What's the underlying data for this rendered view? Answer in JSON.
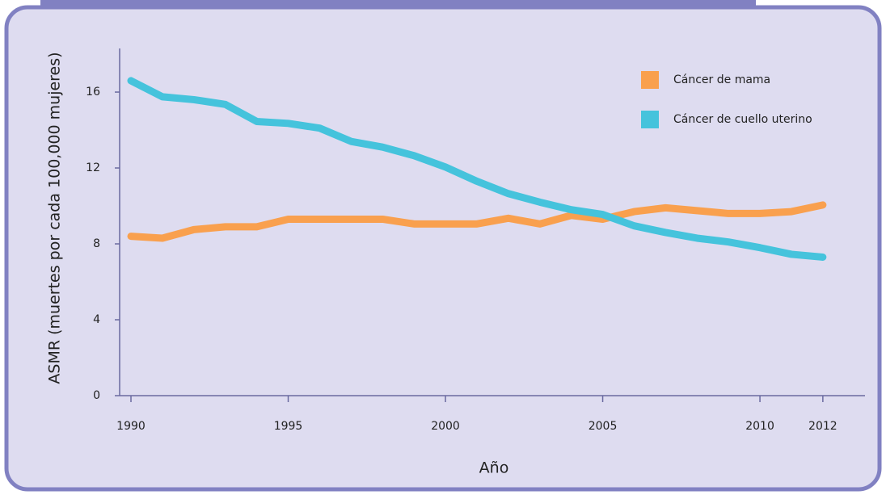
{
  "chart_data": {
    "type": "line",
    "x": [
      1990,
      1991,
      1992,
      1993,
      1994,
      1995,
      1996,
      1997,
      1998,
      1999,
      2000,
      2001,
      2002,
      2003,
      2004,
      2005,
      2006,
      2007,
      2008,
      2009,
      2010,
      2011,
      2012
    ],
    "series": [
      {
        "name": "Cáncer de mama",
        "color": "#f9a04e",
        "values": [
          8.4,
          8.3,
          8.75,
          8.9,
          8.9,
          9.3,
          9.3,
          9.3,
          9.3,
          9.05,
          9.05,
          9.05,
          9.35,
          9.05,
          9.5,
          9.3,
          9.7,
          9.9,
          9.75,
          9.6,
          9.6,
          9.7,
          10.05
        ]
      },
      {
        "name": "Cáncer de cuello uterino",
        "color": "#45c3dc",
        "values": [
          16.6,
          15.75,
          15.6,
          15.35,
          14.45,
          14.35,
          14.1,
          13.4,
          13.1,
          12.65,
          12.05,
          11.3,
          10.65,
          10.2,
          9.8,
          9.55,
          8.95,
          8.6,
          8.3,
          8.1,
          7.8,
          7.45,
          7.3
        ]
      }
    ],
    "xlabel": "Año",
    "ylabel": "ASMR (muertes por cada 100,000 mujeres)",
    "xlim": [
      1989.64,
      2013.34
    ],
    "xticks": [
      1990,
      1995,
      2000,
      2005,
      2010,
      2012
    ],
    "ylim": [
      0,
      18.3
    ],
    "yticks": [
      0,
      4,
      8,
      12,
      16
    ],
    "legend": "upper right"
  }
}
